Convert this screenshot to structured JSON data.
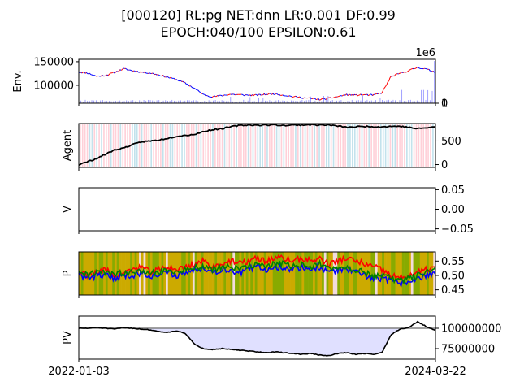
{
  "figure": {
    "title_line1": "[000120] RL:pg NET:dnn LR:0.001 DF:0.99",
    "title_line2": "EPOCH:040/100 EPSILON:0.61",
    "x_tick_start": "2022-01-03",
    "x_tick_end": "2024-03-22"
  },
  "colors": {
    "price_up": "#ff0000",
    "price_down": "#0000ff",
    "volume": "#8a8aff",
    "agent_line": "#000000",
    "agent_buy_band": "#ffc0cb",
    "agent_sell_band": "#add8e6",
    "p_line_1": "#ff0000",
    "p_line_2": "#0000ff",
    "p_line_3": "#008000",
    "p_band_a": "#ccaa00",
    "p_band_b": "#88aa00",
    "pv_line": "#000000",
    "pv_fill": "#e0e0ff",
    "pv_base": "#808080"
  },
  "chart_data": [
    {
      "type": "line",
      "panel": "Env.",
      "ylabel": "Env.",
      "y_ticks": [
        "100000",
        "150000"
      ],
      "y2_ticks": [
        "0",
        "1"
      ],
      "y2_exponent": "1e6",
      "ylim": [
        62000,
        155000
      ],
      "y2lim": [
        0,
        1300000
      ],
      "series": [
        {
          "values": [
            128000,
            126000,
            119000,
            121000,
            127000,
            135000,
            131000,
            128000,
            126000,
            122000,
            117000,
            112000,
            104000,
            93000,
            80000,
            76000,
            78000,
            81000,
            80000,
            79000,
            79000,
            81000,
            82000,
            79000,
            76000,
            74000,
            72000,
            70000,
            72000,
            76000,
            80000,
            79000,
            80000,
            79000,
            84000,
            118000,
            125000,
            131000,
            138000,
            134000,
            128000
          ]
        }
      ]
    },
    {
      "type": "line",
      "panel": "Agent",
      "ylabel": "Agent",
      "y_ticks": [
        "0",
        "500"
      ],
      "ylim": [
        -60,
        870
      ],
      "series": [
        {
          "values": [
            0,
            60,
            130,
            220,
            310,
            350,
            420,
            480,
            500,
            520,
            560,
            600,
            620,
            640,
            700,
            740,
            760,
            800,
            830,
            840,
            835,
            840,
            842,
            830,
            838,
            840,
            845,
            840,
            838,
            820,
            790,
            800,
            810,
            805,
            800,
            810,
            812,
            790,
            760,
            780,
            800
          ]
        }
      ]
    },
    {
      "type": "line",
      "panel": "V",
      "ylabel": "V",
      "y_ticks": [
        "−0.05",
        "0.00",
        "0.05"
      ],
      "ylim": [
        -0.055,
        0.055
      ],
      "series": []
    },
    {
      "type": "line",
      "panel": "P",
      "ylabel": "P",
      "y_ticks": [
        "0.45",
        "0.50",
        "0.55"
      ],
      "ylim": [
        0.432,
        0.582
      ],
      "series": [
        {
          "values": [
            0.51,
            0.5,
            0.51,
            0.52,
            0.5,
            0.51,
            0.52,
            0.53,
            0.51,
            0.52,
            0.53,
            0.52,
            0.53,
            0.54,
            0.55,
            0.53,
            0.54,
            0.55,
            0.54,
            0.55,
            0.56,
            0.55,
            0.56,
            0.56,
            0.55,
            0.56,
            0.55,
            0.56,
            0.54,
            0.55,
            0.56,
            0.55,
            0.54,
            0.53,
            0.52,
            0.5,
            0.49,
            0.5,
            0.51,
            0.52,
            0.53
          ]
        },
        {
          "values": [
            0.5,
            0.49,
            0.5,
            0.5,
            0.49,
            0.5,
            0.5,
            0.51,
            0.5,
            0.5,
            0.51,
            0.5,
            0.51,
            0.52,
            0.53,
            0.51,
            0.52,
            0.52,
            0.51,
            0.52,
            0.53,
            0.52,
            0.53,
            0.53,
            0.52,
            0.53,
            0.52,
            0.53,
            0.51,
            0.52,
            0.52,
            0.51,
            0.5,
            0.49,
            0.49,
            0.48,
            0.47,
            0.48,
            0.49,
            0.5,
            0.51
          ]
        },
        {
          "values": [
            0.51,
            0.5,
            0.51,
            0.51,
            0.5,
            0.51,
            0.51,
            0.52,
            0.51,
            0.51,
            0.52,
            0.51,
            0.52,
            0.53,
            0.53,
            0.52,
            0.53,
            0.53,
            0.52,
            0.53,
            0.54,
            0.53,
            0.54,
            0.54,
            0.53,
            0.54,
            0.53,
            0.54,
            0.52,
            0.53,
            0.53,
            0.52,
            0.51,
            0.5,
            0.5,
            0.49,
            0.48,
            0.49,
            0.5,
            0.51,
            0.52
          ]
        }
      ]
    },
    {
      "type": "area",
      "panel": "PV",
      "ylabel": "PV",
      "y_ticks": [
        "75000000",
        "100000000"
      ],
      "ylim": [
        62000000,
        115000000
      ],
      "baseline": 100000000,
      "series": [
        {
          "values": [
            100000000,
            100000000,
            101000000,
            100000000,
            99000000,
            101000000,
            100000000,
            99000000,
            98000000,
            96000000,
            95000000,
            97000000,
            93000000,
            80000000,
            75000000,
            74000000,
            75000000,
            74000000,
            73000000,
            72000000,
            71000000,
            70000000,
            71000000,
            70000000,
            69000000,
            68000000,
            69000000,
            67000000,
            66000000,
            69000000,
            70000000,
            68000000,
            69000000,
            68000000,
            70000000,
            92000000,
            99000000,
            101000000,
            108000000,
            102000000,
            97000000
          ]
        }
      ]
    }
  ]
}
